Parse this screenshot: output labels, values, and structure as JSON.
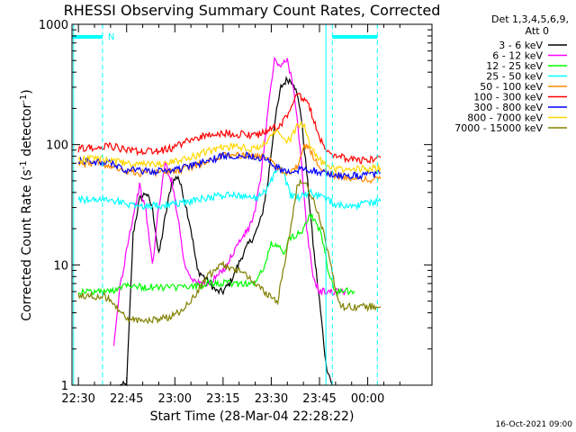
{
  "chart_data": {
    "type": "line",
    "title": "RHESSI Observing Summary Count Rates, Corrected",
    "xlabel": "Start Time (28-Mar-04 22:28:22)",
    "ylabel_main": "Corrected Count Rate (s",
    "ylabel_sup1": "-1",
    "ylabel_mid": " detector",
    "ylabel_sup2": "-1",
    "ylabel_end": ")",
    "ylog": true,
    "ylim": [
      1,
      1000
    ],
    "xlim_minutes": [
      -2,
      110
    ],
    "xtick_labels": [
      "22:30",
      "22:45",
      "23:00",
      "23:15",
      "23:30",
      "23:45",
      "00:00"
    ],
    "xtick_minutes": [
      0,
      15,
      30,
      45,
      60,
      75,
      90
    ],
    "ytick_labels": [
      "1",
      "10",
      "100",
      "1000"
    ],
    "ytick_values": [
      1,
      10,
      100,
      1000
    ],
    "legend_header": [
      "Det 1,3,4,5,6,9,",
      "Att 0"
    ],
    "annotation_N": "N",
    "footer_date": "16-Oct-2021 09:00",
    "night_marks": {
      "color": "#00ffff",
      "bars": [
        [
          -2,
          7.5
        ],
        [
          79,
          93
        ]
      ],
      "dashed_minutes": [
        7.5,
        79,
        93
      ],
      "solid_minutes": [
        -1.5,
        77
      ]
    },
    "series": [
      {
        "name": "3 - 6 keV",
        "color": "#000000",
        "x": [
          13,
          14,
          15,
          17,
          19,
          21,
          23,
          25,
          27,
          29,
          31,
          33,
          35,
          37,
          39,
          41,
          43,
          45,
          47,
          49,
          51,
          53,
          55,
          57,
          59,
          61,
          63,
          65,
          67,
          69,
          71,
          73,
          75,
          77,
          79
        ],
        "y": [
          1,
          1,
          1,
          18,
          35,
          40,
          30,
          12,
          25,
          48,
          55,
          35,
          20,
          9,
          8,
          7,
          6,
          6,
          7,
          9,
          12,
          15,
          18,
          25,
          50,
          150,
          300,
          350,
          330,
          200,
          60,
          15,
          5,
          1.5,
          1
        ]
      },
      {
        "name": "6 - 12 keV",
        "color": "#ff00ff",
        "x": [
          11,
          13,
          14,
          15,
          17,
          19,
          21,
          23,
          25,
          27,
          29,
          31,
          33,
          35,
          37,
          39,
          41,
          43,
          45,
          47,
          49,
          51,
          53,
          55,
          57,
          59,
          61,
          63,
          65,
          67,
          69,
          71,
          73,
          75,
          77,
          79,
          81,
          83
        ],
        "y": [
          2,
          7,
          9,
          14,
          25,
          45,
          28,
          10,
          30,
          70,
          50,
          25,
          10,
          8,
          7,
          7,
          7,
          8,
          9,
          11,
          14,
          17,
          20,
          28,
          60,
          200,
          500,
          450,
          500,
          300,
          90,
          20,
          8,
          6,
          6,
          6,
          6,
          6
        ]
      },
      {
        "name": "12 - 25 keV",
        "color": "#00ff00",
        "x": [
          0,
          5,
          10,
          15,
          20,
          25,
          30,
          35,
          40,
          45,
          50,
          55,
          58,
          60,
          62,
          64,
          66,
          68,
          70,
          72,
          74,
          76,
          78,
          80,
          82,
          84,
          86
        ],
        "y": [
          6,
          6,
          6,
          7,
          6.5,
          6.5,
          6.5,
          6.5,
          7,
          7,
          7,
          7,
          10,
          15,
          14,
          13,
          17,
          18,
          20,
          27,
          23,
          16,
          8,
          6,
          6,
          6,
          6
        ]
      },
      {
        "name": "25 - 50 keV",
        "color": "#00ffff",
        "x": [
          0,
          5,
          10,
          15,
          20,
          25,
          30,
          35,
          40,
          45,
          50,
          55,
          58,
          60,
          62,
          64,
          66,
          68,
          70,
          72,
          74,
          76,
          78,
          80,
          82,
          84,
          86,
          88,
          90,
          92,
          94
        ],
        "y": [
          35,
          35,
          35,
          32,
          31,
          31,
          32,
          34,
          36,
          38,
          38,
          36,
          40,
          50,
          65,
          55,
          38,
          36,
          38,
          40,
          38,
          36,
          34,
          32,
          31,
          31,
          31,
          32,
          33,
          33,
          34
        ]
      },
      {
        "name": "50 - 100 keV",
        "color": "#ff8c00",
        "x": [
          0,
          5,
          10,
          15,
          20,
          25,
          30,
          35,
          40,
          45,
          50,
          55,
          58,
          60,
          62,
          64,
          66,
          68,
          70,
          72,
          74,
          76,
          78,
          80,
          82,
          84,
          86,
          88,
          90,
          92,
          94
        ],
        "y": [
          70,
          70,
          68,
          60,
          58,
          58,
          60,
          65,
          72,
          80,
          82,
          80,
          78,
          72,
          65,
          60,
          58,
          65,
          100,
          90,
          72,
          62,
          58,
          55,
          54,
          53,
          52,
          52,
          51,
          52,
          52
        ]
      },
      {
        "name": "100 - 300 keV",
        "color": "#ff0000",
        "x": [
          0,
          5,
          10,
          15,
          20,
          25,
          30,
          35,
          40,
          45,
          50,
          55,
          58,
          60,
          62,
          64,
          66,
          68,
          70,
          72,
          74,
          76,
          78,
          80,
          82,
          84,
          86,
          88,
          90,
          92,
          94
        ],
        "y": [
          92,
          95,
          98,
          90,
          88,
          88,
          95,
          110,
          120,
          125,
          122,
          120,
          125,
          140,
          135,
          160,
          200,
          260,
          240,
          200,
          140,
          100,
          85,
          80,
          78,
          76,
          75,
          74,
          75,
          76,
          78
        ]
      },
      {
        "name": "300 - 800 keV",
        "color": "#0000ff",
        "x": [
          0,
          5,
          10,
          15,
          20,
          25,
          30,
          35,
          40,
          45,
          50,
          55,
          58,
          60,
          62,
          64,
          66,
          68,
          70,
          72,
          74,
          76,
          78,
          80,
          82,
          84,
          86,
          88,
          90,
          92,
          94
        ],
        "y": [
          72,
          72,
          70,
          62,
          60,
          60,
          62,
          66,
          73,
          80,
          82,
          80,
          76,
          70,
          64,
          60,
          58,
          60,
          65,
          62,
          60,
          58,
          57,
          56,
          55,
          55,
          55,
          55,
          56,
          57,
          58
        ]
      },
      {
        "name": "800 - 7000 keV",
        "color": "#ffd700",
        "x": [
          0,
          5,
          10,
          15,
          20,
          25,
          30,
          35,
          40,
          45,
          50,
          55,
          58,
          60,
          62,
          64,
          66,
          68,
          70,
          72,
          74,
          76,
          78,
          80,
          82,
          84,
          86,
          88,
          90,
          92,
          94
        ],
        "y": [
          75,
          76,
          74,
          70,
          68,
          68,
          72,
          78,
          88,
          95,
          95,
          92,
          100,
          120,
          130,
          110,
          110,
          140,
          150,
          100,
          80,
          70,
          65,
          62,
          62,
          62,
          62,
          63,
          63,
          64,
          64
        ]
      },
      {
        "name": "7000 - 15000 keV",
        "color": "#808000",
        "x": [
          0,
          5,
          8,
          10,
          12,
          14,
          16,
          18,
          20,
          25,
          30,
          35,
          40,
          45,
          50,
          55,
          58,
          60,
          62,
          64,
          66,
          68,
          70,
          72,
          74,
          76,
          78,
          80,
          82,
          84,
          86,
          88,
          90,
          92,
          94
        ],
        "y": [
          5.5,
          5.5,
          5.5,
          5,
          4.5,
          3.8,
          3.5,
          3.5,
          3.5,
          3.5,
          3.8,
          5,
          8,
          10,
          9,
          7,
          6,
          5.5,
          5,
          10,
          20,
          45,
          50,
          40,
          30,
          20,
          12,
          6,
          4.5,
          4.5,
          4.5,
          4.5,
          4.5,
          4.5,
          4.5
        ]
      }
    ]
  }
}
